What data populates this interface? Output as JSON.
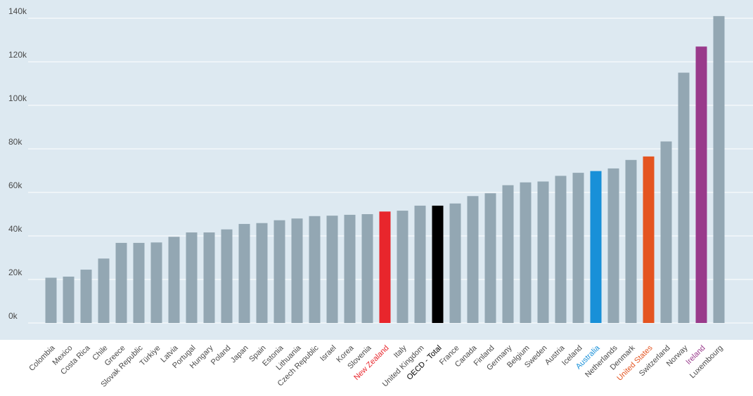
{
  "chart_data": {
    "type": "bar",
    "title": "",
    "xlabel": "",
    "ylabel": "",
    "ylim": [
      0,
      140000
    ],
    "yticks": [
      0,
      20000,
      40000,
      60000,
      80000,
      100000,
      120000,
      140000
    ],
    "ytick_labels": [
      "0k",
      "20k",
      "40k",
      "60k",
      "80k",
      "100k",
      "120k",
      "140k"
    ],
    "grid": true,
    "legend": "none",
    "default_color": "#93a7b3",
    "plot_background": "#dde9f1",
    "categories": [
      "Colombia",
      "Mexico",
      "Costa Rica",
      "Chile",
      "Greece",
      "Slovak Republic",
      "Türkiye",
      "Latvia",
      "Portugal",
      "Hungary",
      "Poland",
      "Japan",
      "Spain",
      "Estonia",
      "Lithuania",
      "Czech Republic",
      "Israel",
      "Korea",
      "Slovenia",
      "New Zealand",
      "Italy",
      "United Kingdom",
      "OECD - Total",
      "France",
      "Canada",
      "Finland",
      "Germany",
      "Belgium",
      "Sweden",
      "Austria",
      "Iceland",
      "Australia",
      "Netherlands",
      "Denmark",
      "United States",
      "Switzerland",
      "Norway",
      "Ireland",
      "Luxembourg"
    ],
    "values": [
      20800,
      21300,
      24500,
      29600,
      36800,
      36800,
      37000,
      39600,
      41600,
      41600,
      43000,
      45500,
      45900,
      47200,
      48000,
      49100,
      49300,
      49700,
      50000,
      51200,
      51600,
      53900,
      53900,
      54900,
      58300,
      59600,
      63300,
      64600,
      65000,
      67600,
      69000,
      69800,
      71000,
      74900,
      76500,
      83400,
      115000,
      127000,
      141000
    ],
    "highlights": [
      {
        "category": "New Zealand",
        "color": "#e8262c"
      },
      {
        "category": "OECD - Total",
        "color": "#000000"
      },
      {
        "category": "Australia",
        "color": "#1890d8"
      },
      {
        "category": "United States",
        "color": "#e45420"
      },
      {
        "category": "Ireland",
        "color": "#993a8b"
      }
    ]
  }
}
